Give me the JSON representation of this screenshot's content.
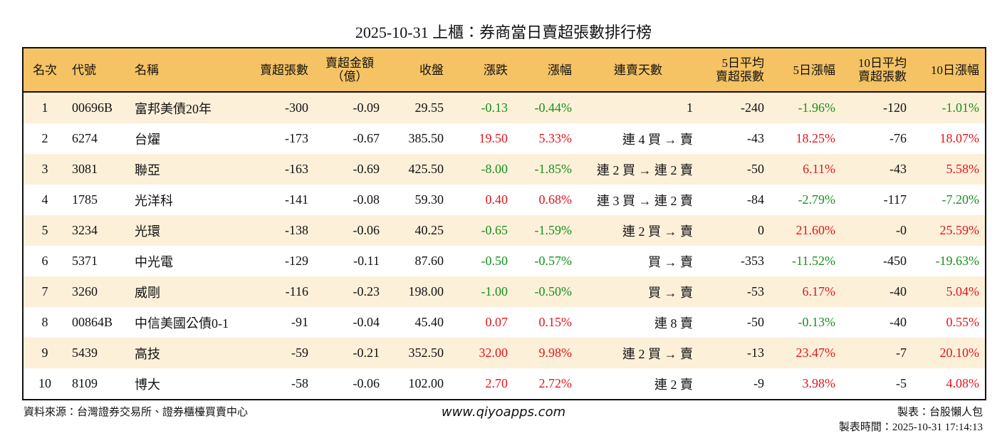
{
  "title": "2025-10-31 上櫃：券商當日賣超張數排行榜",
  "table": {
    "header": [
      "名次",
      "代號",
      "名稱",
      "賣超張數",
      "賣超金額\n（億）",
      "收盤",
      "漲跌",
      "漲幅",
      "連賣天數",
      "5日平均\n賣超張數",
      "5日漲幅",
      "10日平均\n賣超張數",
      "10日漲幅"
    ],
    "rows": [
      [
        "1",
        "00696B",
        "富邦美債20年",
        "-300",
        "-0.09",
        "29.55",
        "-0.13",
        "-0.44%",
        "1",
        "-240",
        "-1.96%",
        "-120",
        "-1.01%"
      ],
      [
        "2",
        "6274",
        "台燿",
        "-173",
        "-0.67",
        "385.50",
        "19.50",
        "5.33%",
        "連 4 買 → 賣",
        "-43",
        "18.25%",
        "-76",
        "18.07%"
      ],
      [
        "3",
        "3081",
        "聯亞",
        "-163",
        "-0.69",
        "425.50",
        "-8.00",
        "-1.85%",
        "連 2 買 → 連 2 賣",
        "-50",
        "6.11%",
        "-43",
        "5.58%"
      ],
      [
        "4",
        "1785",
        "光洋科",
        "-141",
        "-0.08",
        "59.30",
        "0.40",
        "0.68%",
        "連 3 買 → 連 2 賣",
        "-84",
        "-2.79%",
        "-117",
        "-7.20%"
      ],
      [
        "5",
        "3234",
        "光環",
        "-138",
        "-0.06",
        "40.25",
        "-0.65",
        "-1.59%",
        "連 2 買 → 賣",
        "0",
        "21.60%",
        "-0",
        "25.59%"
      ],
      [
        "6",
        "5371",
        "中光電",
        "-129",
        "-0.11",
        "87.60",
        "-0.50",
        "-0.57%",
        "買 → 賣",
        "-353",
        "-11.52%",
        "-450",
        "-19.63%"
      ],
      [
        "7",
        "3260",
        "威剛",
        "-116",
        "-0.23",
        "198.00",
        "-1.00",
        "-0.50%",
        "買 → 賣",
        "-53",
        "6.17%",
        "-40",
        "5.04%"
      ],
      [
        "8",
        "00864B",
        "中信美國公債0-1",
        "-91",
        "-0.04",
        "45.40",
        "0.07",
        "0.15%",
        "連 8 賣",
        "-50",
        "-0.13%",
        "-40",
        "0.55%"
      ],
      [
        "9",
        "5439",
        "高技",
        "-59",
        "-0.21",
        "352.50",
        "32.00",
        "9.98%",
        "連 2 買 → 賣",
        "-13",
        "23.47%",
        "-7",
        "20.10%"
      ],
      [
        "10",
        "8109",
        "博大",
        "-58",
        "-0.06",
        "102.00",
        "2.70",
        "2.72%",
        "連 2 賣",
        "-9",
        "3.98%",
        "-5",
        "4.08%"
      ]
    ]
  },
  "footer": {
    "source": "資料來源：台灣證券交易所、證券櫃檯買賣中心",
    "website": "www.qiyoapps.com",
    "author": "製表：台股懶人包",
    "time": "製表時間：2025-10-31 17:14:13"
  }
}
